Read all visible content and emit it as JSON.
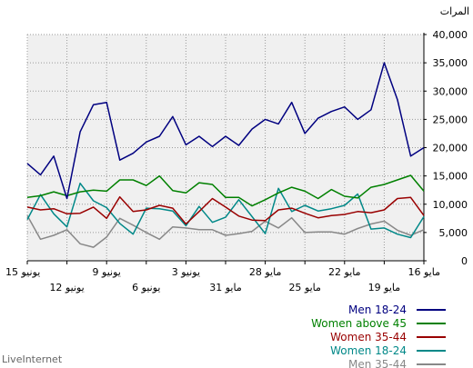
{
  "chart_data": {
    "type": "line",
    "ylabel": "المرات",
    "ylim": [
      0,
      40000
    ],
    "y_ticks": [
      "0",
      "5,000",
      "10,000",
      "15,000",
      "20,000",
      "25,000",
      "30,000",
      "35,000",
      "40,000"
    ],
    "x": [
      "2011-06-15",
      "2011-06-14",
      "2011-06-13",
      "2011-06-12",
      "2011-06-11",
      "2011-06-10",
      "2011-06-09",
      "2011-06-08",
      "2011-06-07",
      "2011-06-06",
      "2011-06-05",
      "2011-06-04",
      "2011-06-03",
      "2011-06-02",
      "2011-06-01",
      "2011-05-31",
      "2011-05-30",
      "2011-05-29",
      "2011-05-28",
      "2011-05-27",
      "2011-05-26",
      "2011-05-25",
      "2011-05-24",
      "2011-05-23",
      "2011-05-22",
      "2011-05-21",
      "2011-05-20",
      "2011-05-19",
      "2011-05-18",
      "2011-05-17",
      "2011-05-16"
    ],
    "x_tick_labels": [
      {
        "label": "15 يونيو",
        "row": 1
      },
      {
        "label": "12 يونيو",
        "row": 2
      },
      {
        "label": "9 يونيو",
        "row": 1
      },
      {
        "label": "6 يونيو",
        "row": 2
      },
      {
        "label": "3 يونيو",
        "row": 1
      },
      {
        "label": "31 مايو",
        "row": 2
      },
      {
        "label": "28 مايو",
        "row": 1
      },
      {
        "label": "25 مايو",
        "row": 2
      },
      {
        "label": "22 مايو",
        "row": 1
      },
      {
        "label": "19 مايو",
        "row": 2
      },
      {
        "label": "16 مايو",
        "row": 1
      }
    ],
    "grid": true,
    "legend_position": "bottom-right",
    "series": [
      {
        "name": "Men 18-24",
        "color": "#000080",
        "values": [
          17200,
          15200,
          18500,
          11000,
          22800,
          27600,
          28000,
          17800,
          19000,
          21000,
          22000,
          25500,
          20500,
          22000,
          20200,
          22000,
          20400,
          23300,
          25000,
          24200,
          28000,
          22500,
          25200,
          26400,
          27200,
          25000,
          26700,
          35000,
          28500,
          18500,
          20000
        ]
      },
      {
        "name": "Women above 45",
        "color": "#008000",
        "values": [
          11200,
          11500,
          12200,
          11500,
          12200,
          12500,
          12300,
          14300,
          14300,
          13300,
          15000,
          12400,
          12000,
          13800,
          13500,
          11200,
          11200,
          9700,
          10800,
          12000,
          13000,
          12300,
          11000,
          12600,
          11400,
          11100,
          13000,
          13500,
          14300,
          15100,
          12300
        ]
      },
      {
        "name": "Women 35-44",
        "color": "#990000",
        "values": [
          9500,
          9000,
          9200,
          8300,
          8400,
          9500,
          7500,
          11300,
          8700,
          9000,
          9800,
          9300,
          6500,
          8700,
          11000,
          9500,
          7900,
          7200,
          7100,
          9000,
          9300,
          8400,
          7600,
          8000,
          8200,
          8700,
          8500,
          9000,
          11000,
          11200,
          8000
        ]
      },
      {
        "name": "Women 18-24",
        "color": "#008888",
        "values": [
          7300,
          11700,
          8300,
          6000,
          13700,
          10600,
          9400,
          6600,
          4700,
          9300,
          9200,
          8800,
          6200,
          9600,
          6800,
          7700,
          10800,
          7800,
          4800,
          12800,
          8700,
          9800,
          8800,
          9200,
          9800,
          11800,
          5600,
          5800,
          4700,
          4100,
          7800
        ]
      },
      {
        "name": "Men 35-44",
        "color": "#888888",
        "values": [
          8000,
          3800,
          4500,
          5500,
          3000,
          2400,
          4200,
          7500,
          6300,
          5000,
          3800,
          6000,
          5800,
          5500,
          5500,
          4500,
          4800,
          5200,
          7000,
          5800,
          7600,
          5000,
          5100,
          5100,
          4700,
          5700,
          6500,
          7000,
          5400,
          4500,
          5500
        ]
      }
    ]
  },
  "watermark": "LiveInternet"
}
